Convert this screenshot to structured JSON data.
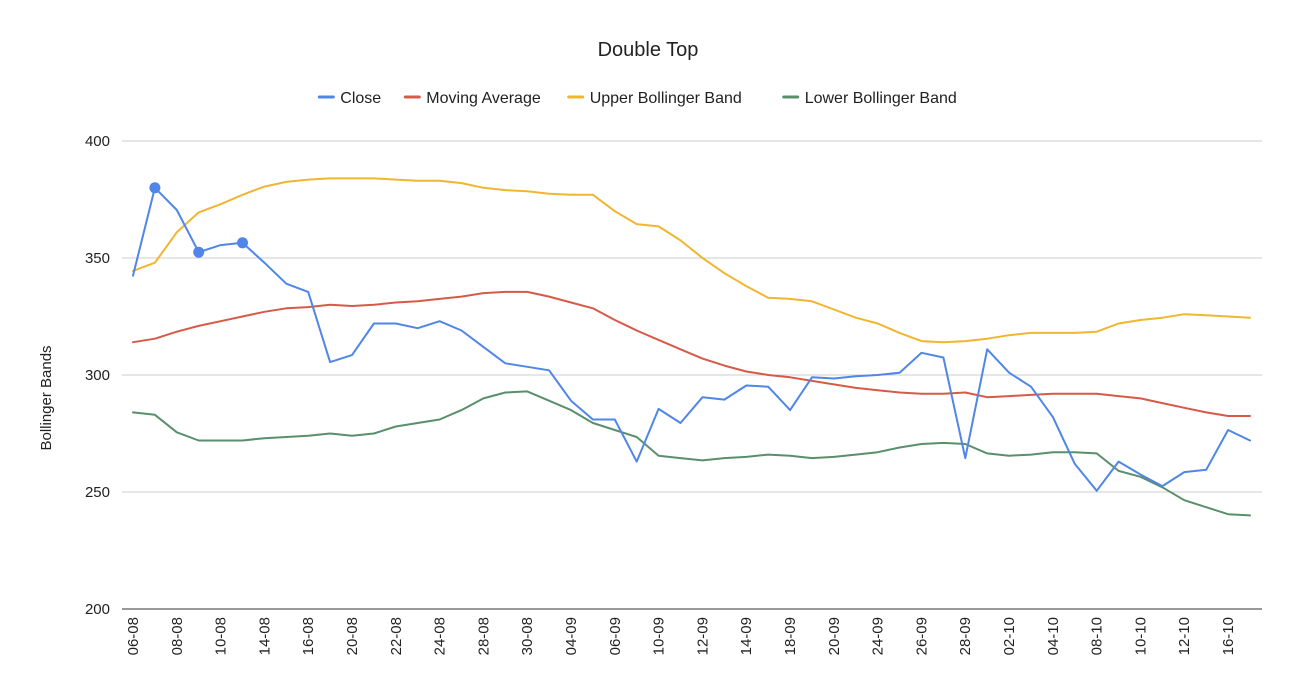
{
  "chart_data": {
    "type": "line",
    "title": "Double Top",
    "xlabel": "",
    "ylabel": "Bollinger Bands",
    "ylim": [
      200,
      400
    ],
    "yticks": [
      200,
      250,
      300,
      350,
      400
    ],
    "grid": true,
    "legend_position": "top",
    "x_tick_labels": [
      "06-08",
      "08-08",
      "10-08",
      "14-08",
      "16-08",
      "20-08",
      "22-08",
      "24-08",
      "28-08",
      "30-08",
      "04-09",
      "06-09",
      "10-09",
      "12-09",
      "14-09",
      "18-09",
      "20-09",
      "24-09",
      "26-09",
      "28-09",
      "02-10",
      "04-10",
      "08-10",
      "10-10",
      "12-10",
      "16-10"
    ],
    "series": [
      {
        "name": "Close",
        "color": "#4f86e7",
        "values": [
          342.5,
          380,
          370.5,
          352.5,
          355.5,
          356.5,
          348,
          339,
          335.5,
          305.5,
          308.5,
          322,
          322,
          320,
          323,
          319,
          312,
          305,
          303.5,
          302,
          289,
          281,
          281,
          263,
          285.5,
          279.5,
          290.5,
          289.5,
          295.5,
          295,
          285,
          299,
          298.5,
          299.5,
          300,
          301,
          309.5,
          307.5,
          264.5,
          311,
          301,
          295,
          282,
          262,
          250.5,
          263,
          257.5,
          252.5,
          258.5,
          259.5,
          276.5,
          272
        ],
        "markers": [
          {
            "index": 1,
            "value": 380
          },
          {
            "index": 3,
            "value": 352.5
          },
          {
            "index": 5,
            "value": 356.5
          }
        ]
      },
      {
        "name": "Moving Average",
        "color": "#d65a47",
        "values": [
          314,
          315.5,
          318.5,
          321,
          323,
          325,
          327,
          328.5,
          329,
          330,
          329.5,
          330,
          331,
          331.5,
          332.5,
          333.5,
          335,
          335.5,
          335.5,
          333.5,
          331,
          328.5,
          323.5,
          319,
          315,
          311,
          307,
          304,
          301.5,
          300,
          299,
          297.5,
          296,
          294.5,
          293.5,
          292.5,
          292,
          292,
          292.5,
          290.5,
          291,
          291.5,
          292,
          292,
          292,
          291,
          290,
          288,
          286,
          284,
          282.5,
          282.5
        ]
      },
      {
        "name": "Upper Bollinger Band",
        "color": "#f0b62f",
        "values": [
          344.5,
          348,
          361,
          369.5,
          373,
          377,
          380.5,
          382.5,
          383.5,
          384,
          384,
          384,
          383.5,
          383,
          383,
          382,
          380,
          379,
          378.5,
          377.5,
          377,
          377,
          370,
          364.5,
          363.5,
          357.5,
          350,
          343.5,
          338,
          333,
          332.5,
          331.5,
          328,
          324.5,
          322,
          318,
          314.5,
          314,
          314.5,
          315.5,
          317,
          318,
          318,
          318,
          318.5,
          322,
          323.5,
          324.5,
          326,
          325.5,
          325,
          324.5
        ]
      },
      {
        "name": "Lower Bollinger Band",
        "color": "#5a8f6c",
        "values": [
          284,
          283,
          275.5,
          272,
          272,
          272,
          273,
          273.5,
          274,
          275,
          274,
          275,
          278,
          279.5,
          281,
          285,
          290,
          292.5,
          293,
          289,
          285,
          279.5,
          276.5,
          273.5,
          265.5,
          264.5,
          263.5,
          264.5,
          265,
          266,
          265.5,
          264.5,
          265,
          266,
          267,
          269,
          270.5,
          271,
          270.5,
          266.5,
          265.5,
          266,
          267,
          267,
          266.5,
          259,
          256.5,
          252,
          246.5,
          243.5,
          240.5,
          240
        ]
      }
    ]
  }
}
